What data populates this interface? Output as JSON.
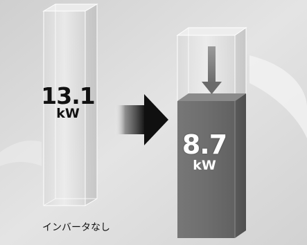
{
  "left_column": {
    "value": "13.1",
    "unit": "kW",
    "caption": "インバータなし"
  },
  "right_column": {
    "value": "8.7",
    "unit": "kW"
  },
  "colors": {
    "background": "#d6d6d6",
    "glass_face": "#e3e3e3",
    "filled_column": "#6e6e6e",
    "arrow_dark": "#111111",
    "down_arrow": "#777777"
  }
}
